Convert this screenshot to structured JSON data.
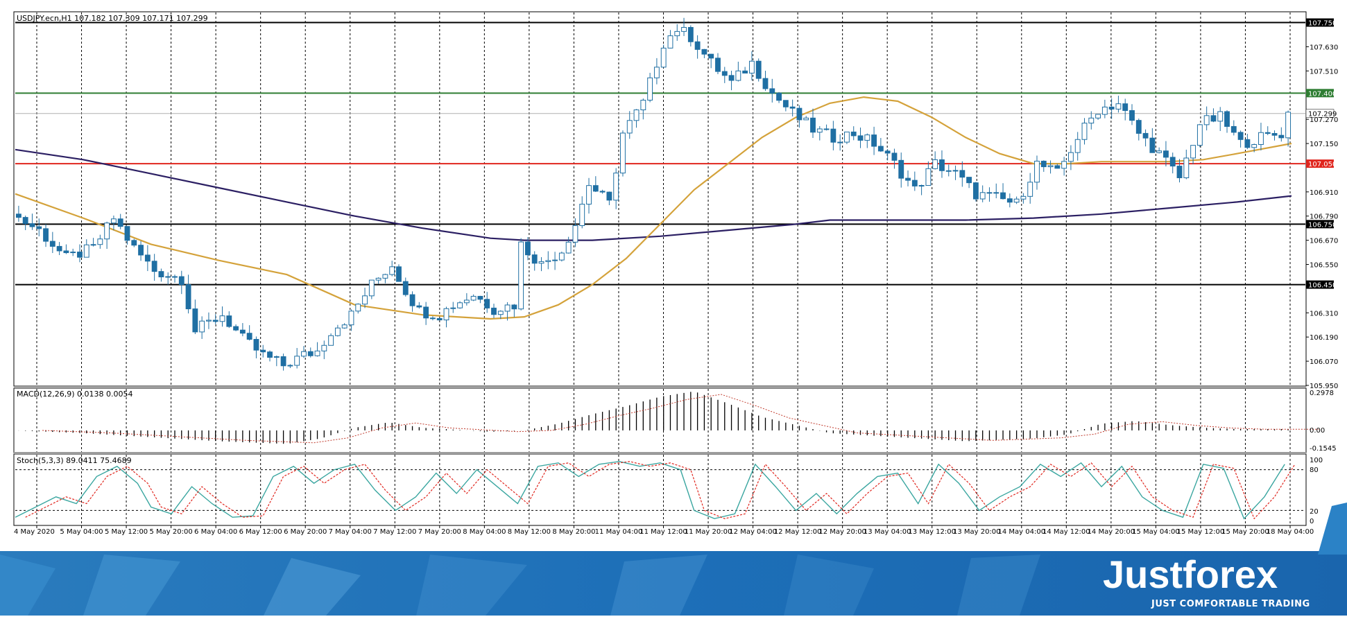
{
  "header": {
    "symbol_info": "USDJPY.ecn,H1 107.182 107.309 107.171 107.299"
  },
  "indicators": {
    "macd_label": "MACD(12,26,9) 0.0138 0.0054",
    "macd_ticks": [
      "0.2978",
      "0.00",
      "-0.1545"
    ],
    "stoch_label": "Stoch(5,3,3) 89.0411 75.4689",
    "stoch_ticks": [
      "100",
      "80",
      "20",
      "0"
    ]
  },
  "brand": {
    "name": "Justforex",
    "tagline": "JUST COMFORTABLE TRADING"
  },
  "colors": {
    "candle": "#1f6fa3",
    "ma_fast": "#d4a23a",
    "ma_slow": "#2b1f63",
    "level_red": "#e0261e",
    "level_green": "#2e7d32",
    "level_black": "#000000",
    "brand_blue": "#1f7fc4"
  },
  "chart_data": {
    "type": "candlestick",
    "y_ticks": [
      "107.750",
      "107.630",
      "107.510",
      "107.400",
      "107.299",
      "107.270",
      "107.150",
      "107.050",
      "106.910",
      "106.790",
      "106.750",
      "106.670",
      "106.550",
      "106.450",
      "106.310",
      "106.190",
      "106.070",
      "105.950"
    ],
    "x_ticks": [
      "4 May 2020",
      "5 May 04:00",
      "5 May 12:00",
      "5 May 20:00",
      "6 May 04:00",
      "6 May 12:00",
      "6 May 20:00",
      "7 May 04:00",
      "7 May 12:00",
      "7 May 20:00",
      "8 May 04:00",
      "8 May 12:00",
      "8 May 20:00",
      "11 May 04:00",
      "11 May 12:00",
      "11 May 20:00",
      "12 May 04:00",
      "12 May 12:00",
      "12 May 20:00",
      "13 May 04:00",
      "13 May 12:00",
      "13 May 20:00",
      "14 May 04:00",
      "14 May 12:00",
      "14 May 20:00",
      "15 May 04:00",
      "15 May 12:00",
      "15 May 20:00",
      "18 May 04:00"
    ],
    "levels": [
      {
        "value": 107.75,
        "label": "107.750",
        "color": "#000000"
      },
      {
        "value": 107.4,
        "label": "107.400",
        "color": "#2e7d32"
      },
      {
        "value": 107.05,
        "label": "107.050",
        "color": "#e0261e"
      },
      {
        "value": 106.75,
        "label": "106.750",
        "color": "#000000"
      },
      {
        "value": 106.45,
        "label": "106.450",
        "color": "#000000"
      }
    ],
    "current_price": {
      "value": 107.299,
      "label": "107.299"
    },
    "ylim": [
      105.95,
      107.8
    ],
    "close_path": [
      [
        0,
        106.8
      ],
      [
        4,
        106.72
      ],
      [
        8,
        106.58
      ],
      [
        12,
        106.63
      ],
      [
        15,
        106.78
      ],
      [
        18,
        106.63
      ],
      [
        21,
        106.52
      ],
      [
        25,
        106.48
      ],
      [
        27,
        106.22
      ],
      [
        31,
        106.3
      ],
      [
        34,
        106.18
      ],
      [
        37,
        106.1
      ],
      [
        40,
        106.05
      ],
      [
        43,
        106.1
      ],
      [
        45,
        106.12
      ],
      [
        47,
        106.22
      ],
      [
        50,
        106.3
      ],
      [
        53,
        106.45
      ],
      [
        56,
        106.55
      ],
      [
        58,
        106.42
      ],
      [
        60,
        106.32
      ],
      [
        63,
        106.3
      ],
      [
        65,
        106.35
      ],
      [
        68,
        106.4
      ],
      [
        71,
        106.33
      ],
      [
        74,
        106.35
      ],
      [
        75,
        106.65
      ],
      [
        78,
        106.55
      ],
      [
        81,
        106.62
      ],
      [
        83,
        106.75
      ],
      [
        85,
        106.95
      ],
      [
        88,
        106.85
      ],
      [
        90,
        107.2
      ],
      [
        93,
        107.35
      ],
      [
        96,
        107.65
      ],
      [
        98,
        107.72
      ],
      [
        100,
        107.68
      ],
      [
        103,
        107.55
      ],
      [
        106,
        107.45
      ],
      [
        109,
        107.55
      ],
      [
        112,
        107.4
      ],
      [
        115,
        107.3
      ],
      [
        118,
        107.22
      ],
      [
        121,
        107.18
      ],
      [
        124,
        107.2
      ],
      [
        127,
        107.15
      ],
      [
        130,
        107.05
      ],
      [
        133,
        106.92
      ],
      [
        136,
        107.05
      ],
      [
        139,
        107.0
      ],
      [
        142,
        106.9
      ],
      [
        145,
        106.88
      ],
      [
        148,
        106.85
      ],
      [
        151,
        107.05
      ],
      [
        154,
        107.0
      ],
      [
        157,
        107.18
      ],
      [
        160,
        107.32
      ],
      [
        163,
        107.35
      ],
      [
        166,
        107.2
      ],
      [
        169,
        107.1
      ],
      [
        172,
        106.98
      ],
      [
        175,
        107.25
      ],
      [
        178,
        107.28
      ],
      [
        181,
        107.15
      ],
      [
        184,
        107.18
      ],
      [
        187,
        107.2
      ],
      [
        188,
        107.299
      ]
    ],
    "ma_fast_path": [
      [
        0,
        106.9
      ],
      [
        10,
        106.78
      ],
      [
        20,
        106.65
      ],
      [
        30,
        106.57
      ],
      [
        40,
        106.5
      ],
      [
        50,
        106.35
      ],
      [
        60,
        106.3
      ],
      [
        70,
        106.28
      ],
      [
        75,
        106.29
      ],
      [
        80,
        106.35
      ],
      [
        85,
        106.45
      ],
      [
        90,
        106.58
      ],
      [
        95,
        106.75
      ],
      [
        100,
        106.92
      ],
      [
        105,
        107.05
      ],
      [
        110,
        107.18
      ],
      [
        115,
        107.28
      ],
      [
        120,
        107.35
      ],
      [
        125,
        107.38
      ],
      [
        130,
        107.36
      ],
      [
        135,
        107.28
      ],
      [
        140,
        107.18
      ],
      [
        145,
        107.1
      ],
      [
        150,
        107.05
      ],
      [
        155,
        107.05
      ],
      [
        160,
        107.06
      ],
      [
        165,
        107.06
      ],
      [
        170,
        107.06
      ],
      [
        175,
        107.07
      ],
      [
        180,
        107.1
      ],
      [
        188,
        107.15
      ]
    ],
    "ma_slow_path": [
      [
        0,
        107.12
      ],
      [
        10,
        107.07
      ],
      [
        20,
        107.0
      ],
      [
        30,
        106.93
      ],
      [
        40,
        106.86
      ],
      [
        50,
        106.79
      ],
      [
        60,
        106.73
      ],
      [
        70,
        106.68
      ],
      [
        75,
        106.67
      ],
      [
        85,
        106.67
      ],
      [
        95,
        106.69
      ],
      [
        105,
        106.72
      ],
      [
        115,
        106.75
      ],
      [
        120,
        106.77
      ],
      [
        130,
        106.77
      ],
      [
        140,
        106.77
      ],
      [
        150,
        106.78
      ],
      [
        160,
        106.8
      ],
      [
        170,
        106.83
      ],
      [
        180,
        106.86
      ],
      [
        188,
        106.89
      ]
    ],
    "macd_ylim": [
      -0.1545,
      0.2978
    ],
    "macd_path": [
      [
        0,
        0.0
      ],
      [
        10,
        -0.02
      ],
      [
        20,
        -0.05
      ],
      [
        30,
        -0.08
      ],
      [
        40,
        -0.1
      ],
      [
        45,
        -0.06
      ],
      [
        50,
        0.02
      ],
      [
        55,
        0.06
      ],
      [
        60,
        0.02
      ],
      [
        70,
        -0.01
      ],
      [
        75,
        0.0
      ],
      [
        80,
        0.05
      ],
      [
        85,
        0.12
      ],
      [
        90,
        0.18
      ],
      [
        95,
        0.25
      ],
      [
        100,
        0.29
      ],
      [
        105,
        0.2
      ],
      [
        110,
        0.1
      ],
      [
        115,
        0.04
      ],
      [
        120,
        -0.02
      ],
      [
        130,
        -0.05
      ],
      [
        140,
        -0.08
      ],
      [
        150,
        -0.06
      ],
      [
        155,
        -0.03
      ],
      [
        160,
        0.05
      ],
      [
        165,
        0.07
      ],
      [
        170,
        0.04
      ],
      [
        175,
        0.02
      ],
      [
        180,
        0.01
      ],
      [
        188,
        0.01
      ]
    ],
    "stoch_path": [
      [
        0,
        10
      ],
      [
        3,
        25
      ],
      [
        6,
        40
      ],
      [
        9,
        30
      ],
      [
        12,
        70
      ],
      [
        15,
        85
      ],
      [
        18,
        60
      ],
      [
        20,
        25
      ],
      [
        23,
        15
      ],
      [
        26,
        55
      ],
      [
        29,
        30
      ],
      [
        32,
        10
      ],
      [
        35,
        12
      ],
      [
        38,
        70
      ],
      [
        41,
        85
      ],
      [
        44,
        60
      ],
      [
        47,
        80
      ],
      [
        50,
        88
      ],
      [
        53,
        50
      ],
      [
        56,
        20
      ],
      [
        59,
        40
      ],
      [
        62,
        75
      ],
      [
        65,
        45
      ],
      [
        68,
        80
      ],
      [
        71,
        55
      ],
      [
        74,
        30
      ],
      [
        77,
        85
      ],
      [
        80,
        90
      ],
      [
        83,
        70
      ],
      [
        86,
        88
      ],
      [
        89,
        92
      ],
      [
        92,
        85
      ],
      [
        95,
        90
      ],
      [
        98,
        80
      ],
      [
        100,
        20
      ],
      [
        103,
        8
      ],
      [
        106,
        15
      ],
      [
        109,
        88
      ],
      [
        112,
        55
      ],
      [
        115,
        20
      ],
      [
        118,
        45
      ],
      [
        121,
        15
      ],
      [
        124,
        45
      ],
      [
        127,
        70
      ],
      [
        130,
        75
      ],
      [
        133,
        30
      ],
      [
        136,
        88
      ],
      [
        139,
        60
      ],
      [
        142,
        20
      ],
      [
        145,
        40
      ],
      [
        148,
        55
      ],
      [
        151,
        88
      ],
      [
        154,
        70
      ],
      [
        157,
        90
      ],
      [
        160,
        55
      ],
      [
        163,
        85
      ],
      [
        166,
        40
      ],
      [
        169,
        20
      ],
      [
        172,
        10
      ],
      [
        175,
        88
      ],
      [
        178,
        82
      ],
      [
        181,
        8
      ],
      [
        184,
        40
      ],
      [
        187,
        88
      ]
    ],
    "candle_count": 188
  }
}
